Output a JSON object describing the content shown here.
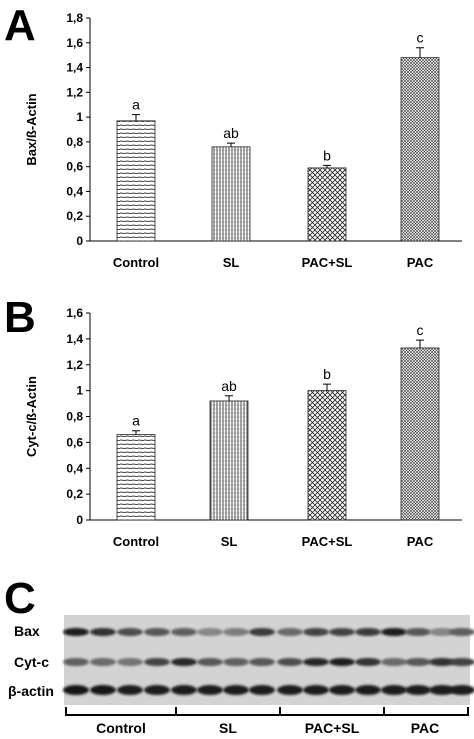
{
  "panels": {
    "a": "A",
    "b": "B",
    "c": "C"
  },
  "chart_data": [
    {
      "type": "bar",
      "categories": [
        "Control",
        "SL",
        "PAC+SL",
        "PAC"
      ],
      "values": [
        0.97,
        0.76,
        0.59,
        1.48
      ],
      "errors": [
        0.05,
        0.03,
        0.02,
        0.08
      ],
      "letters": [
        "a",
        "ab",
        "b",
        "c"
      ],
      "ylabel": "Bax/ß-Actin",
      "ylim": [
        0,
        1.8
      ],
      "yticks": [
        "0",
        "0,2",
        "0,4",
        "0,6",
        "0,8",
        "1",
        "1,2",
        "1,4",
        "1,6",
        "1,8"
      ],
      "patterns": [
        "hlines",
        "vlines",
        "cross",
        "dcross"
      ]
    },
    {
      "type": "bar",
      "categories": [
        "Control",
        "SL",
        "PAC+SL",
        "PAC"
      ],
      "values": [
        0.66,
        0.92,
        1.0,
        1.33
      ],
      "errors": [
        0.03,
        0.04,
        0.05,
        0.06
      ],
      "letters": [
        "a",
        "ab",
        "b",
        "c"
      ],
      "ylabel": "Cyt-c/ß-Actin",
      "ylim": [
        0,
        1.6
      ],
      "yticks": [
        "0",
        "0,2",
        "0,4",
        "0,6",
        "0,8",
        "1",
        "1,2",
        "1,4",
        "1,6"
      ],
      "patterns": [
        "hlines",
        "vlines",
        "cross",
        "dcross"
      ]
    }
  ],
  "blot": {
    "rows": [
      "Bax",
      "Cyt-c",
      "β-actin"
    ],
    "groups": [
      "Control",
      "SL",
      "PAC+SL",
      "PAC"
    ]
  }
}
